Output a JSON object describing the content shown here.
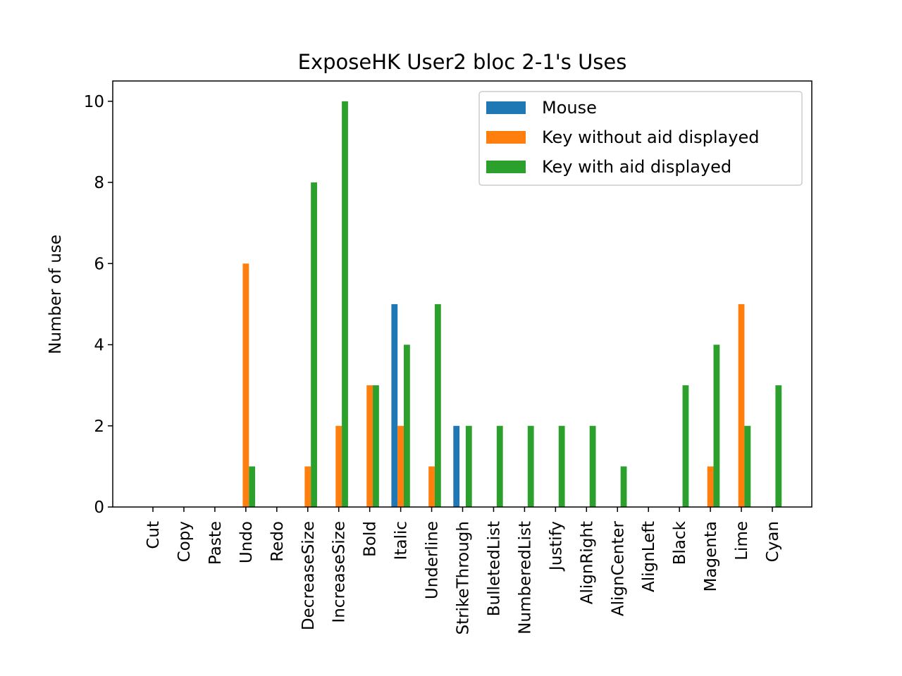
{
  "chart_data": {
    "type": "bar",
    "title": "ExposeHK User2 bloc 2-1's Uses",
    "xlabel": "",
    "ylabel": "Number of use",
    "ylim": [
      0,
      10.5
    ],
    "yticks": [
      "0",
      "2",
      "4",
      "6",
      "8",
      "10"
    ],
    "grid": false,
    "legend_position": "top-right",
    "categories": [
      "Cut",
      "Copy",
      "Paste",
      "Undo",
      "Redo",
      "DecreaseSize",
      "IncreaseSize",
      "Bold",
      "Italic",
      "Underline",
      "StrikeThrough",
      "BulletedList",
      "NumberedList",
      "Justify",
      "AlignRight",
      "AlignCenter",
      "AlignLeft",
      "Black",
      "Magenta",
      "Lime",
      "Cyan"
    ],
    "series": [
      {
        "name": "Mouse",
        "color": "#1f77b4",
        "values": [
          0,
          0,
          0,
          0,
          0,
          0,
          0,
          0,
          5,
          0,
          2,
          0,
          0,
          0,
          0,
          0,
          0,
          0,
          0,
          0,
          0
        ]
      },
      {
        "name": "Key without aid displayed",
        "color": "#ff7f0e",
        "values": [
          0,
          0,
          0,
          6,
          0,
          1,
          2,
          3,
          2,
          1,
          0,
          0,
          0,
          0,
          0,
          0,
          0,
          0,
          1,
          5,
          0
        ]
      },
      {
        "name": "Key with aid displayed",
        "color": "#2ca02c",
        "values": [
          0,
          0,
          0,
          1,
          0,
          8,
          10,
          3,
          4,
          5,
          2,
          2,
          2,
          2,
          2,
          1,
          0,
          3,
          4,
          2,
          3
        ]
      }
    ]
  }
}
